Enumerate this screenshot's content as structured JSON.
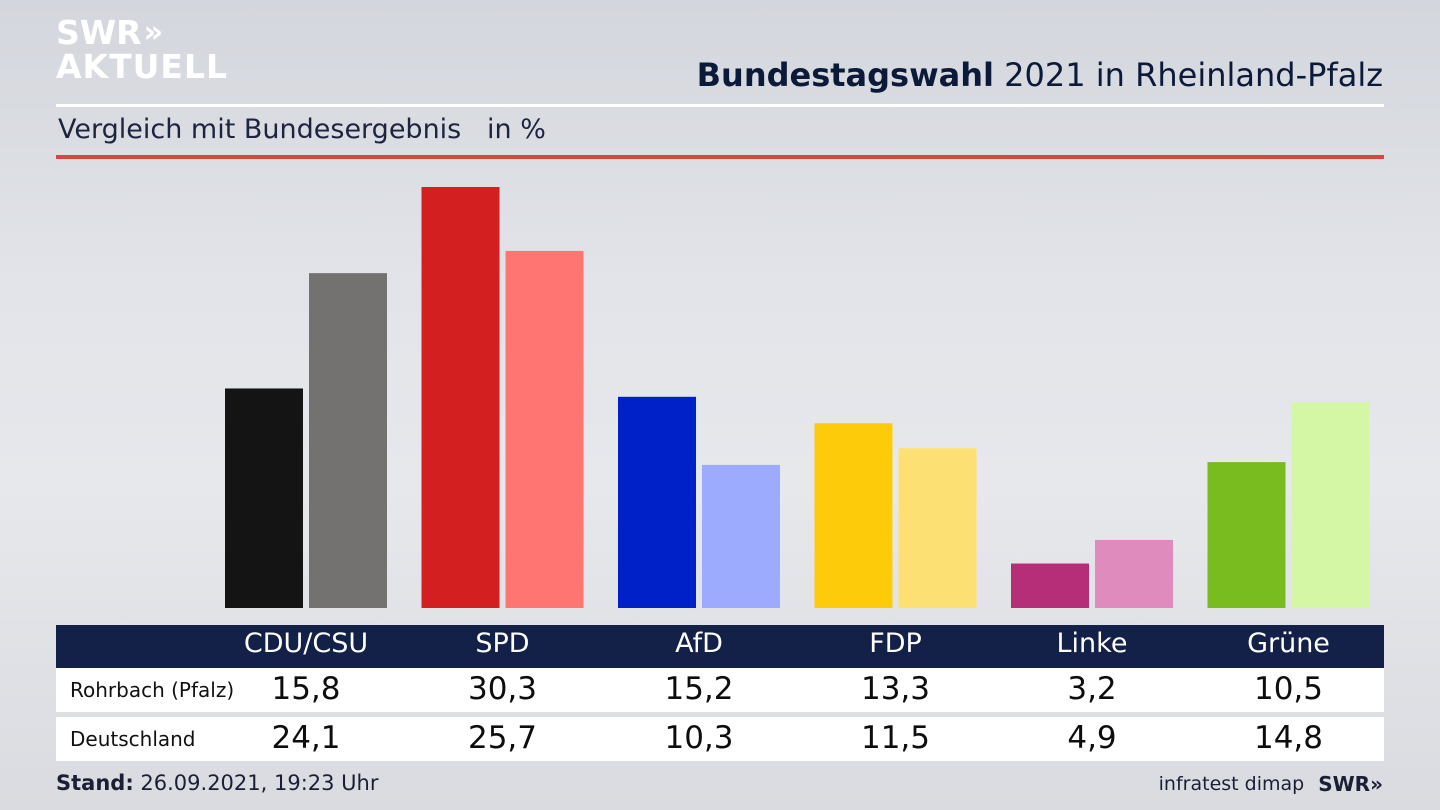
{
  "brand": {
    "line1": "SWR",
    "line2": "AKTUELL",
    "footer_logo": "SWR"
  },
  "header": {
    "title_bold": "Bundestagswahl",
    "title_rest": " 2021 in Rheinland-Pfalz"
  },
  "subtitle": "Vergleich mit Bundesergebnis   in %",
  "table": {
    "rows": [
      {
        "label": "Rohrbach (Pfalz)",
        "values": [
          "15,8",
          "30,3",
          "15,2",
          "13,3",
          "3,2",
          "10,5"
        ]
      },
      {
        "label": "Deutschland",
        "values": [
          "24,1",
          "25,7",
          "10,3",
          "11,5",
          "4,9",
          "14,8"
        ]
      }
    ]
  },
  "footer": {
    "stand_label": "Stand:",
    "stand_value": " 26.09.2021, 19:23 Uhr",
    "source": "infratest dimap"
  },
  "chart_data": {
    "type": "bar",
    "categories": [
      "CDU/CSU",
      "SPD",
      "AfD",
      "FDP",
      "Linke",
      "Grüne"
    ],
    "series": [
      {
        "name": "Rohrbach (Pfalz)",
        "values": [
          15.8,
          30.3,
          15.2,
          13.3,
          3.2,
          10.5
        ],
        "colors": [
          "#141414",
          "#d41f21",
          "#0021c8",
          "#fecb0a",
          "#b62e77",
          "#78bc20"
        ]
      },
      {
        "name": "Deutschland",
        "values": [
          24.1,
          25.7,
          10.3,
          11.5,
          4.9,
          14.8
        ],
        "colors": [
          "#737270",
          "#ff7572",
          "#9dabff",
          "#fde073",
          "#df8bbe",
          "#d4f7a6"
        ]
      }
    ],
    "ylim": [
      0,
      30.3
    ],
    "title": "Bundestagswahl 2021 in Rheinland-Pfalz",
    "unit": "%",
    "grid": false
  }
}
